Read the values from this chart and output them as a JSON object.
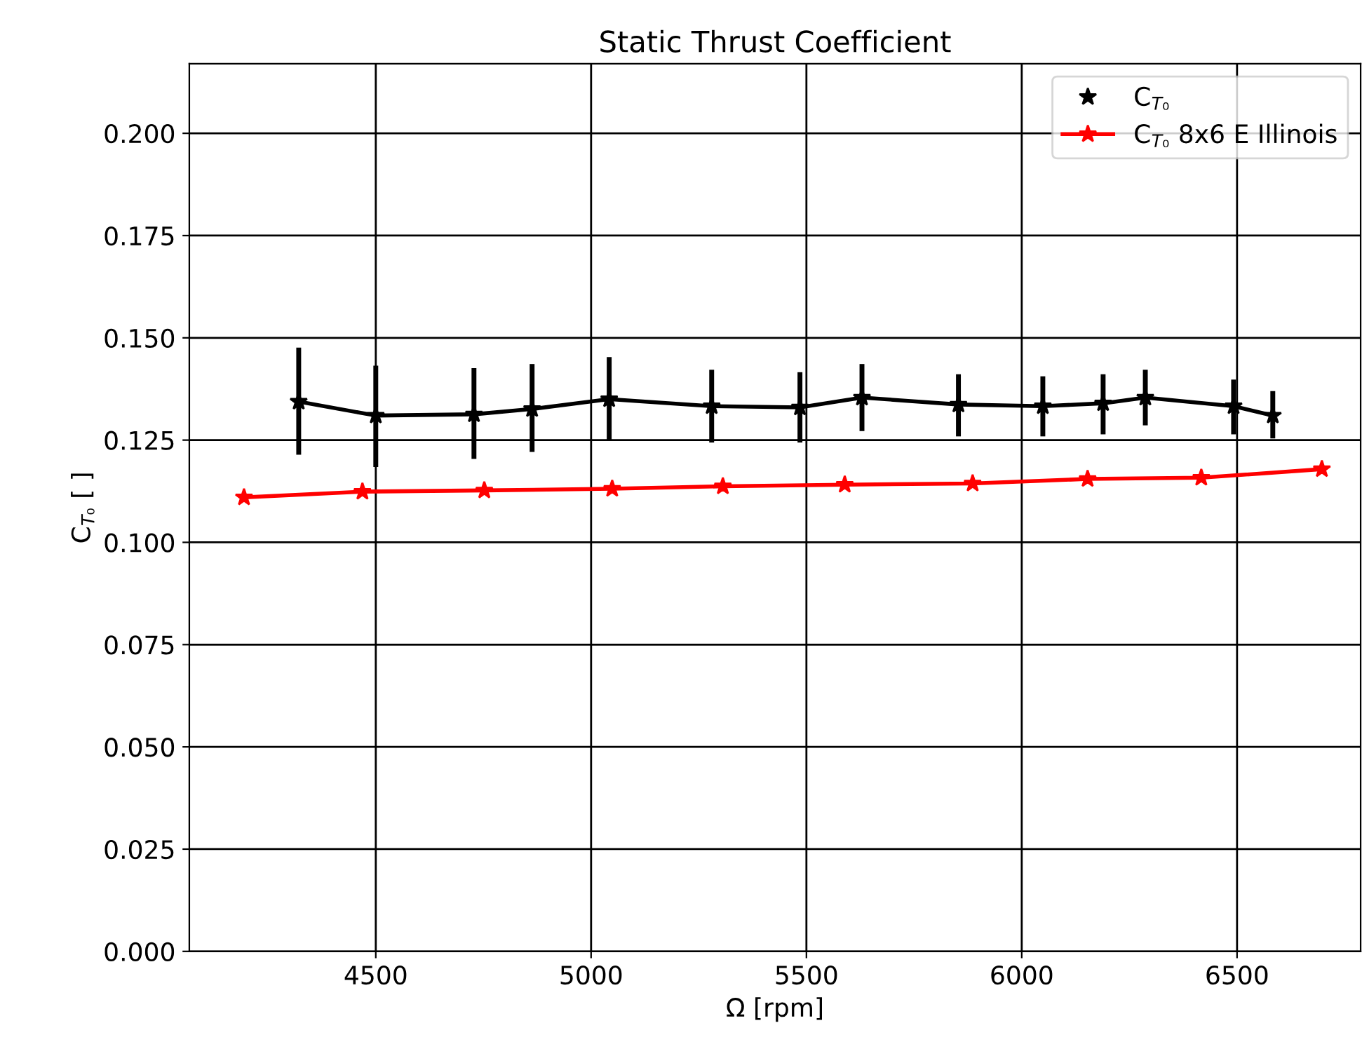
{
  "chart_data": {
    "type": "line",
    "title": "Static Thrust Coefficient",
    "xlabel": "Ω [rpm]",
    "ylabel": "C$_{T₀}$ [ ]",
    "xlim": [
      4067,
      6787
    ],
    "ylim": [
      0,
      0.217
    ],
    "xticks": [
      4500,
      5000,
      5500,
      6000,
      6500
    ],
    "yticks": [
      {
        "value": 0,
        "label": "0.000"
      },
      {
        "value": 0.025,
        "label": "0.025"
      },
      {
        "value": 0.05,
        "label": "0.050"
      },
      {
        "value": 0.075,
        "label": "0.075"
      },
      {
        "value": 0.1,
        "label": "0.100"
      },
      {
        "value": 0.125,
        "label": "0.125"
      },
      {
        "value": 0.15,
        "label": "0.150"
      },
      {
        "value": 0.175,
        "label": "0.175"
      },
      {
        "value": 0.2,
        "label": "0.200"
      }
    ],
    "grid": true,
    "legend": "top right",
    "marker": "star",
    "line_style": "solid",
    "series": [
      {
        "name": "C$_{T₀}$",
        "color": "#000000",
        "x": [
          4321,
          4500,
          4728,
          4863,
          5042,
          5280,
          5485,
          5629,
          5853,
          6049,
          6189,
          6287,
          6492,
          6583
        ],
        "values": [
          0.1344,
          0.131,
          0.1313,
          0.1326,
          0.135,
          0.1333,
          0.133,
          0.1354,
          0.1337,
          0.1333,
          0.134,
          0.1354,
          0.1333,
          0.131
        ],
        "errors": [
          [
            0.122,
            0.147
          ],
          [
            0.119,
            0.1426
          ],
          [
            0.121,
            0.142
          ],
          [
            0.1227,
            0.143
          ],
          [
            0.1254,
            0.1447
          ],
          [
            0.125,
            0.1416
          ],
          [
            0.125,
            0.141
          ],
          [
            0.1278,
            0.143
          ],
          [
            0.1265,
            0.1405
          ],
          [
            0.1265,
            0.14
          ],
          [
            0.127,
            0.1405
          ],
          [
            0.1292,
            0.1416
          ],
          [
            0.127,
            0.1392
          ],
          [
            0.126,
            0.1364
          ]
        ]
      },
      {
        "name": "C$_{T₀}$ 8x6 E Illinois",
        "color": "#ff0000",
        "x": [
          4194,
          4469,
          4752,
          5049,
          5306,
          5589,
          5886,
          6153,
          6417,
          6697
        ],
        "values": [
          0.111,
          0.1124,
          0.1127,
          0.1131,
          0.1137,
          0.1141,
          0.1144,
          0.1155,
          0.1158,
          0.1179
        ]
      }
    ]
  }
}
